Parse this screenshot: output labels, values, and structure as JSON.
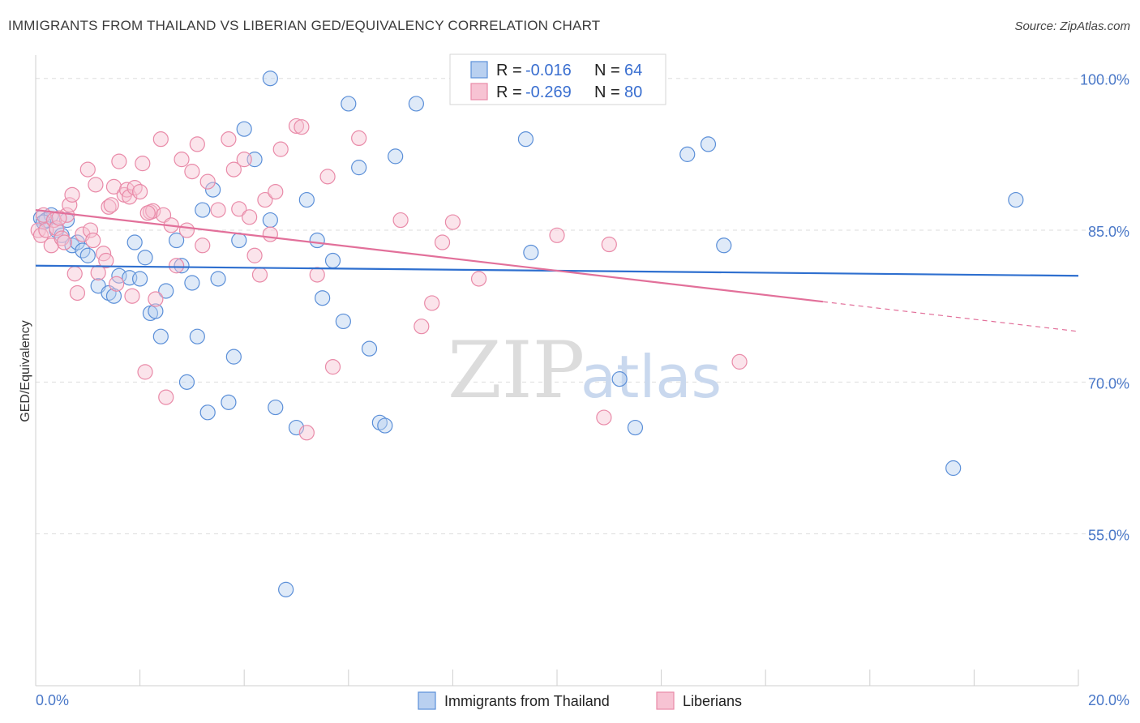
{
  "title": "IMMIGRANTS FROM THAILAND VS LIBERIAN GED/EQUIVALENCY CORRELATION CHART",
  "source": "Source: ZipAtlas.com",
  "watermark": {
    "part1": "ZIP",
    "part2": "atlas"
  },
  "colors": {
    "blue": "#5b8fd8",
    "blue_fill": "#b9d0f0",
    "blue_line": "#2e6fcf",
    "pink": "#e98aa8",
    "pink_fill": "#f7c3d3",
    "pink_line": "#e2709a",
    "tick_label": "#4a78c8"
  },
  "legend": {
    "rows": [
      {
        "r_label": "R =",
        "r_value": "-0.016",
        "n_label": "N =",
        "n_value": "64"
      },
      {
        "r_label": "R =",
        "r_value": "-0.269",
        "n_label": "N =",
        "n_value": "80"
      }
    ]
  },
  "bottom_legend": [
    "Immigrants from Thailand",
    "Liberians"
  ],
  "chart_data": {
    "type": "scatter",
    "title": "IMMIGRANTS FROM THAILAND VS LIBERIAN GED/EQUIVALENCY CORRELATION CHART",
    "xlabel": "",
    "ylabel": "GED/Equivalency",
    "xlim": [
      0,
      20
    ],
    "ylim": [
      40,
      101.5
    ],
    "x_tick_labels": [
      "0.0%",
      "20.0%"
    ],
    "y_ticks": [
      100,
      85,
      70,
      55
    ],
    "y_tick_labels": [
      "100.0%",
      "85.0%",
      "70.0%",
      "55.0%"
    ],
    "grid": true,
    "legend_placement": "top-center",
    "series": [
      {
        "name": "Immigrants from Thailand",
        "color": "#5b8fd8",
        "trend": {
          "x": [
            0,
            20
          ],
          "y": [
            81.5,
            80.5
          ],
          "dashed_from": null
        },
        "points": [
          [
            0.1,
            86.2
          ],
          [
            0.2,
            86.0
          ],
          [
            0.3,
            86.5
          ],
          [
            0.4,
            85.0
          ],
          [
            0.5,
            84.5
          ],
          [
            0.6,
            86.0
          ],
          [
            0.7,
            83.5
          ],
          [
            0.8,
            83.8
          ],
          [
            0.9,
            83.0
          ],
          [
            1.0,
            82.5
          ],
          [
            1.2,
            79.5
          ],
          [
            1.4,
            78.8
          ],
          [
            1.5,
            78.5
          ],
          [
            1.6,
            80.5
          ],
          [
            1.8,
            80.3
          ],
          [
            1.9,
            83.8
          ],
          [
            2.0,
            80.2
          ],
          [
            2.1,
            82.3
          ],
          [
            2.2,
            76.8
          ],
          [
            2.3,
            77.0
          ],
          [
            2.4,
            74.5
          ],
          [
            2.5,
            79.0
          ],
          [
            2.7,
            84.0
          ],
          [
            2.8,
            81.5
          ],
          [
            2.9,
            70.0
          ],
          [
            3.0,
            79.8
          ],
          [
            3.1,
            74.5
          ],
          [
            3.2,
            87.0
          ],
          [
            3.3,
            67.0
          ],
          [
            3.4,
            89.0
          ],
          [
            3.5,
            80.2
          ],
          [
            3.7,
            68.0
          ],
          [
            3.8,
            72.5
          ],
          [
            3.9,
            84.0
          ],
          [
            4.0,
            95.0
          ],
          [
            4.2,
            92.0
          ],
          [
            4.5,
            100.0
          ],
          [
            4.5,
            86.0
          ],
          [
            4.6,
            67.5
          ],
          [
            4.8,
            49.5
          ],
          [
            5.0,
            65.5
          ],
          [
            5.2,
            88.0
          ],
          [
            5.4,
            84.0
          ],
          [
            5.5,
            78.3
          ],
          [
            5.7,
            82.0
          ],
          [
            5.9,
            76.0
          ],
          [
            6.0,
            97.5
          ],
          [
            6.2,
            91.2
          ],
          [
            6.4,
            73.3
          ],
          [
            6.6,
            66.0
          ],
          [
            6.7,
            65.7
          ],
          [
            6.9,
            92.3
          ],
          [
            7.3,
            97.5
          ],
          [
            8.5,
            99.8
          ],
          [
            9.4,
            94.0
          ],
          [
            9.5,
            82.8
          ],
          [
            11.2,
            70.3
          ],
          [
            11.5,
            65.5
          ],
          [
            12.5,
            92.5
          ],
          [
            12.9,
            93.5
          ],
          [
            13.2,
            83.5
          ],
          [
            17.6,
            61.5
          ],
          [
            18.8,
            88.0
          ],
          [
            0.15,
            85.8
          ]
        ]
      },
      {
        "name": "Liberians",
        "color": "#e98aa8",
        "trend": {
          "x": [
            0,
            20
          ],
          "y": [
            87.0,
            75.0
          ],
          "dashed_from": 15.1
        },
        "points": [
          [
            0.05,
            85.0
          ],
          [
            0.1,
            84.5
          ],
          [
            0.15,
            86.5
          ],
          [
            0.2,
            85.0
          ],
          [
            0.3,
            83.5
          ],
          [
            0.35,
            86.0
          ],
          [
            0.4,
            85.2
          ],
          [
            0.5,
            84.2
          ],
          [
            0.6,
            86.5
          ],
          [
            0.65,
            87.5
          ],
          [
            0.7,
            88.5
          ],
          [
            0.75,
            80.7
          ],
          [
            0.8,
            78.8
          ],
          [
            0.9,
            84.6
          ],
          [
            1.0,
            91.0
          ],
          [
            1.05,
            85.0
          ],
          [
            1.1,
            84.0
          ],
          [
            1.15,
            89.5
          ],
          [
            1.2,
            80.8
          ],
          [
            1.3,
            82.7
          ],
          [
            1.35,
            82.0
          ],
          [
            1.4,
            87.3
          ],
          [
            1.45,
            87.5
          ],
          [
            1.5,
            89.3
          ],
          [
            1.55,
            79.7
          ],
          [
            1.6,
            91.8
          ],
          [
            1.7,
            88.5
          ],
          [
            1.75,
            89.0
          ],
          [
            1.8,
            88.3
          ],
          [
            1.85,
            78.5
          ],
          [
            1.9,
            89.2
          ],
          [
            2.0,
            88.8
          ],
          [
            2.05,
            91.6
          ],
          [
            2.1,
            71.0
          ],
          [
            2.2,
            86.8
          ],
          [
            2.25,
            86.9
          ],
          [
            2.3,
            78.2
          ],
          [
            2.4,
            94.0
          ],
          [
            2.45,
            86.5
          ],
          [
            2.5,
            68.5
          ],
          [
            2.6,
            85.5
          ],
          [
            2.7,
            81.5
          ],
          [
            2.8,
            92.0
          ],
          [
            2.9,
            85.0
          ],
          [
            3.0,
            90.8
          ],
          [
            3.1,
            93.5
          ],
          [
            3.2,
            83.5
          ],
          [
            3.3,
            89.8
          ],
          [
            3.5,
            87.0
          ],
          [
            3.7,
            94.0
          ],
          [
            3.8,
            91.0
          ],
          [
            3.9,
            87.1
          ],
          [
            4.0,
            92.0
          ],
          [
            4.1,
            86.3
          ],
          [
            4.2,
            82.5
          ],
          [
            4.3,
            80.6
          ],
          [
            4.4,
            88.0
          ],
          [
            4.5,
            84.6
          ],
          [
            4.6,
            88.8
          ],
          [
            4.7,
            93.0
          ],
          [
            5.0,
            95.3
          ],
          [
            5.1,
            95.2
          ],
          [
            5.2,
            65.0
          ],
          [
            5.4,
            80.6
          ],
          [
            5.6,
            90.3
          ],
          [
            5.7,
            71.5
          ],
          [
            6.2,
            94.1
          ],
          [
            7.0,
            86.0
          ],
          [
            7.4,
            75.5
          ],
          [
            7.6,
            77.8
          ],
          [
            7.8,
            83.8
          ],
          [
            8.0,
            85.8
          ],
          [
            8.5,
            80.2
          ],
          [
            10.0,
            84.5
          ],
          [
            10.9,
            66.5
          ],
          [
            11.0,
            83.6
          ],
          [
            13.5,
            72.0
          ],
          [
            0.45,
            86.2
          ],
          [
            0.55,
            83.8
          ],
          [
            2.15,
            86.7
          ]
        ]
      }
    ]
  }
}
